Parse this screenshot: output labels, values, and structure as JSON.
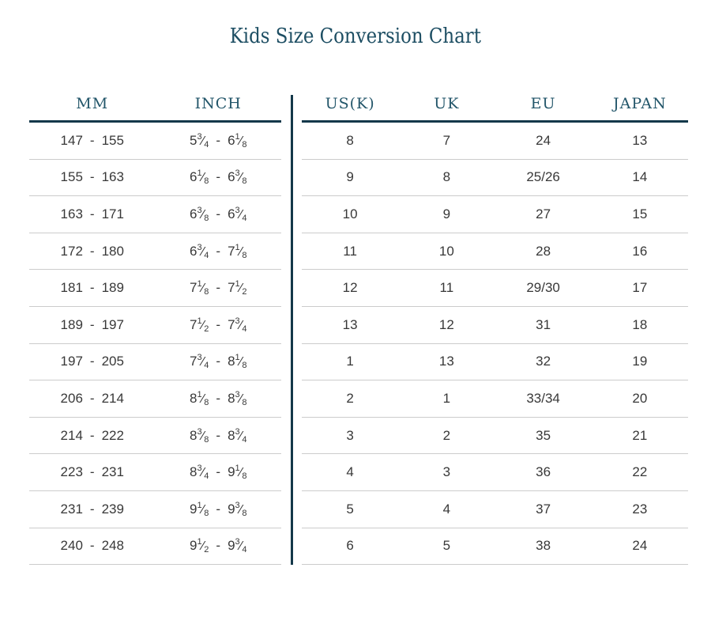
{
  "title": "Kids Size Conversion Chart",
  "table": {
    "left_headers": [
      "MM",
      "INCH"
    ],
    "right_headers": [
      "US(K)",
      "UK",
      "EU",
      "JAPAN"
    ],
    "rows": [
      {
        "mm_from": "147",
        "mm_to": "155",
        "inch_from": "5 3/4",
        "inch_to": "6 1/8",
        "usk": "8",
        "uk": "7",
        "eu": "24",
        "japan": "13"
      },
      {
        "mm_from": "155",
        "mm_to": "163",
        "inch_from": "6 1/8",
        "inch_to": "6 3/8",
        "usk": "9",
        "uk": "8",
        "eu": "25/26",
        "japan": "14"
      },
      {
        "mm_from": "163",
        "mm_to": "171",
        "inch_from": "6 3/8",
        "inch_to": "6 3/4",
        "usk": "10",
        "uk": "9",
        "eu": "27",
        "japan": "15"
      },
      {
        "mm_from": "172",
        "mm_to": "180",
        "inch_from": "6 3/4",
        "inch_to": "7 1/8",
        "usk": "11",
        "uk": "10",
        "eu": "28",
        "japan": "16"
      },
      {
        "mm_from": "181",
        "mm_to": "189",
        "inch_from": "7 1/8",
        "inch_to": "7 1/2",
        "usk": "12",
        "uk": "11",
        "eu": "29/30",
        "japan": "17"
      },
      {
        "mm_from": "189",
        "mm_to": "197",
        "inch_from": "7 1/2",
        "inch_to": "7 3/4",
        "usk": "13",
        "uk": "12",
        "eu": "31",
        "japan": "18"
      },
      {
        "mm_from": "197",
        "mm_to": "205",
        "inch_from": "7 3/4",
        "inch_to": "8 1/8",
        "usk": "1",
        "uk": "13",
        "eu": "32",
        "japan": "19"
      },
      {
        "mm_from": "206",
        "mm_to": "214",
        "inch_from": "8 1/8",
        "inch_to": "8 3/8",
        "usk": "2",
        "uk": "1",
        "eu": "33/34",
        "japan": "20"
      },
      {
        "mm_from": "214",
        "mm_to": "222",
        "inch_from": "8 3/8",
        "inch_to": "8 3/4",
        "usk": "3",
        "uk": "2",
        "eu": "35",
        "japan": "21"
      },
      {
        "mm_from": "223",
        "mm_to": "231",
        "inch_from": "8 3/4",
        "inch_to": "9 1/8",
        "usk": "4",
        "uk": "3",
        "eu": "36",
        "japan": "22"
      },
      {
        "mm_from": "231",
        "mm_to": "239",
        "inch_from": "9 1/8",
        "inch_to": "9 3/8",
        "usk": "5",
        "uk": "4",
        "eu": "37",
        "japan": "23"
      },
      {
        "mm_from": "240",
        "mm_to": "248",
        "inch_from": "9 1/2",
        "inch_to": "9 3/4",
        "usk": "6",
        "uk": "5",
        "eu": "38",
        "japan": "24"
      }
    ]
  },
  "colors": {
    "heading": "#1d4e63",
    "header_rule": "#14384a",
    "row_rule": "#cccccc",
    "body_text": "#383838"
  }
}
